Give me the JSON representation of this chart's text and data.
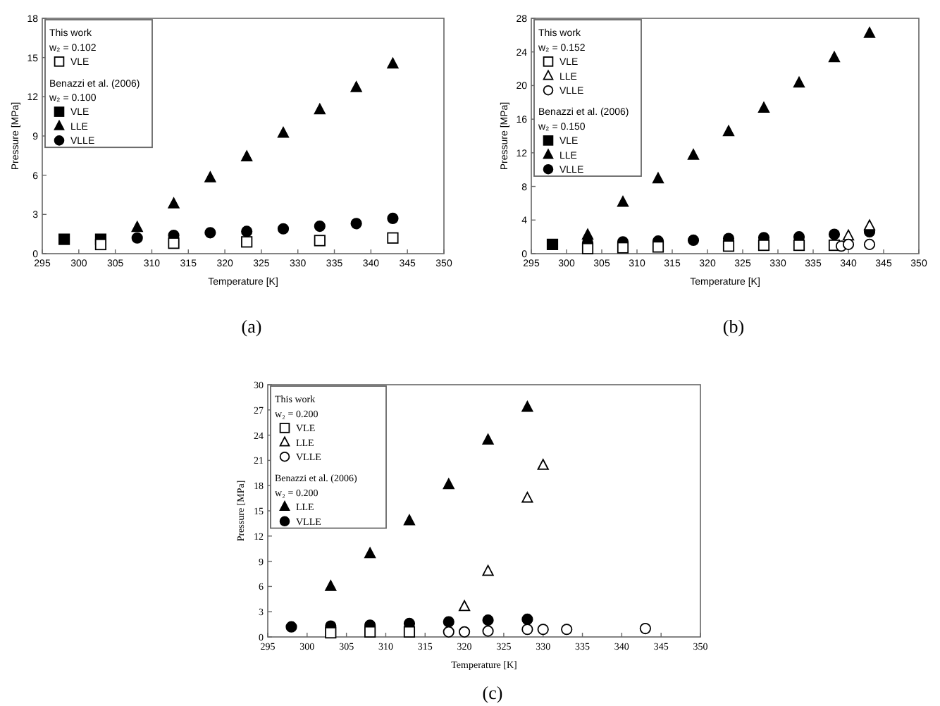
{
  "chart_data": [
    {
      "type": "scatter",
      "title": "(a)",
      "xlabel": "Temperature [K]",
      "ylabel": "Pressure [MPa]",
      "xlim": [
        295,
        350
      ],
      "xticks": [
        295,
        300,
        305,
        310,
        315,
        320,
        325,
        330,
        335,
        340,
        345,
        350
      ],
      "ylim": [
        0,
        18
      ],
      "yticks": [
        0,
        3,
        6,
        9,
        12,
        15,
        18
      ],
      "legend": "top left",
      "annotations": [
        "This work",
        "w₂ = 0.102",
        "Benazzi et al. (2006)",
        "w₂ = 0.100"
      ],
      "series": [
        {
          "name": "VLE",
          "marker": "square",
          "color": "#ffffff",
          "x": [
            303,
            313,
            323,
            333,
            343
          ],
          "values": [
            0.7,
            0.8,
            0.9,
            1.0,
            1.2
          ]
        },
        {
          "name": "VLE",
          "marker": "square",
          "color": "#000000",
          "x": [
            298,
            303
          ],
          "values": [
            1.1,
            1.1
          ]
        },
        {
          "name": "LLE",
          "marker": "triangle",
          "color": "#000000",
          "x": [
            308,
            313,
            318,
            323,
            328,
            333,
            338,
            343
          ],
          "values": [
            2.0,
            3.8,
            5.8,
            7.4,
            9.2,
            11.0,
            12.7,
            14.5
          ]
        },
        {
          "name": "VLLE",
          "marker": "circle",
          "color": "#000000",
          "x": [
            308,
            313,
            318,
            323,
            328,
            333,
            338,
            343
          ],
          "values": [
            1.2,
            1.4,
            1.6,
            1.7,
            1.9,
            2.1,
            2.3,
            2.7
          ]
        }
      ]
    },
    {
      "type": "scatter",
      "title": "(b)",
      "xlabel": "Temperature [K]",
      "ylabel": "Pressure [MPa]",
      "xlim": [
        295,
        350
      ],
      "xticks": [
        295,
        300,
        305,
        310,
        315,
        320,
        325,
        330,
        335,
        340,
        345,
        350
      ],
      "ylim": [
        0,
        28
      ],
      "yticks": [
        0,
        4,
        8,
        12,
        16,
        20,
        24,
        28
      ],
      "legend": "top left",
      "annotations": [
        "This work",
        "w₂ = 0.152",
        "Benazzi et al. (2006)",
        "w₂ = 0.150"
      ],
      "series": [
        {
          "name": "VLE",
          "marker": "square",
          "color": "#ffffff",
          "x": [
            303,
            308,
            313,
            323,
            328,
            333,
            338
          ],
          "values": [
            0.6,
            0.7,
            0.8,
            0.9,
            1.0,
            1.0,
            1.0
          ]
        },
        {
          "name": "LLE",
          "marker": "triangle",
          "color": "#ffffff",
          "x": [
            340,
            343
          ],
          "values": [
            2.1,
            3.3
          ]
        },
        {
          "name": "VLLE",
          "marker": "circle",
          "color": "#ffffff",
          "x": [
            339,
            340,
            343
          ],
          "values": [
            0.9,
            1.1,
            1.1
          ]
        },
        {
          "name": "VLE",
          "marker": "square",
          "color": "#000000",
          "x": [
            298
          ],
          "values": [
            1.1
          ]
        },
        {
          "name": "LLE",
          "marker": "triangle",
          "color": "#000000",
          "x": [
            303,
            308,
            313,
            318,
            323,
            328,
            333,
            338,
            343
          ],
          "values": [
            2.2,
            6.1,
            8.9,
            11.7,
            14.5,
            17.3,
            20.3,
            23.3,
            26.2
          ]
        },
        {
          "name": "VLLE",
          "marker": "circle",
          "color": "#000000",
          "x": [
            303,
            308,
            313,
            318,
            323,
            328,
            333,
            338,
            343
          ],
          "values": [
            1.3,
            1.4,
            1.5,
            1.6,
            1.8,
            1.9,
            2.0,
            2.3,
            2.6
          ]
        }
      ]
    },
    {
      "type": "scatter",
      "title": "(c)",
      "xlabel": "Temperature [K]",
      "ylabel": "Pressure [MPa]",
      "xlim": [
        295,
        350
      ],
      "xticks": [
        295,
        300,
        305,
        310,
        315,
        320,
        325,
        330,
        335,
        340,
        345,
        350
      ],
      "ylim": [
        0,
        30
      ],
      "yticks": [
        0,
        3,
        6,
        9,
        12,
        15,
        18,
        21,
        24,
        27,
        30
      ],
      "legend": "top left",
      "annotations": [
        "This work",
        "w₂ = 0.200",
        "Benazzi et al. (2006)",
        "w₂ = 0.200"
      ],
      "series": [
        {
          "name": "VLE",
          "marker": "square",
          "color": "#ffffff",
          "x": [
            303,
            308,
            313
          ],
          "values": [
            0.5,
            0.6,
            0.6
          ]
        },
        {
          "name": "LLE",
          "marker": "triangle",
          "color": "#ffffff",
          "x": [
            320,
            323,
            328,
            330
          ],
          "values": [
            3.6,
            7.8,
            16.5,
            20.4
          ]
        },
        {
          "name": "VLLE",
          "marker": "circle",
          "color": "#ffffff",
          "x": [
            318,
            320,
            323,
            328,
            330,
            333,
            343
          ],
          "values": [
            0.6,
            0.6,
            0.7,
            0.9,
            0.9,
            0.9,
            1.0
          ]
        },
        {
          "name": "LLE",
          "marker": "triangle",
          "color": "#000000",
          "x": [
            303,
            308,
            313,
            318,
            323,
            328
          ],
          "values": [
            6.0,
            9.9,
            13.8,
            18.1,
            23.4,
            27.3
          ]
        },
        {
          "name": "VLLE",
          "marker": "circle",
          "color": "#000000",
          "x": [
            298,
            303,
            308,
            313,
            318,
            323,
            328
          ],
          "values": [
            1.2,
            1.3,
            1.4,
            1.6,
            1.8,
            2.0,
            2.1
          ]
        }
      ]
    }
  ]
}
